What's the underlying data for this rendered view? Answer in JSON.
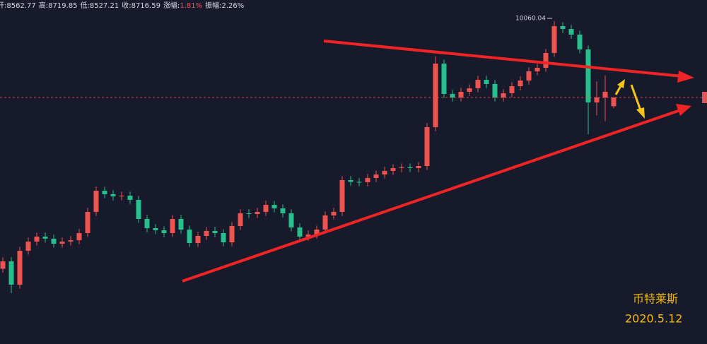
{
  "chart_data": {
    "type": "candlestick",
    "header": [
      {
        "label": "开:",
        "value": "8562.77"
      },
      {
        "label": "高:",
        "value": "8719.85"
      },
      {
        "label": "低:",
        "value": "8527.21"
      },
      {
        "label": "收:",
        "value": "8716.59"
      },
      {
        "label": "涨幅:",
        "value": "1.81%"
      },
      {
        "label": "振幅:",
        "value": "2.26%"
      }
    ],
    "up_color": "#ef5350",
    "down_color": "#26c08e",
    "ylim": [
      4375,
      10433
    ],
    "open": [
      5700,
      5830,
      5420,
      6017,
      6179,
      6266,
      6230,
      6141,
      6179,
      6203,
      6328,
      6701,
      7074,
      7012,
      6975,
      6987,
      6913,
      6577,
      6415,
      6378,
      6328,
      6577,
      6390,
      6154,
      6278,
      6365,
      6328,
      6166,
      6452,
      6676,
      6664,
      6701,
      6825,
      6763,
      6676,
      6427,
      6266,
      6303,
      6390,
      6639,
      6701,
      7261,
      7230,
      7224,
      7298,
      7360,
      7423,
      7472,
      7485,
      7472,
      7510,
      8194,
      9313,
      8779,
      8716,
      8816,
      8878,
      9027,
      8953,
      8716,
      8791,
      8915,
      9015,
      9177,
      9239,
      9500,
      9973,
      9923,
      9823,
      9562,
      8629,
      8716,
      8562.77
    ],
    "high": [
      5900,
      5900,
      6087,
      6249,
      6336,
      6336,
      6300,
      6249,
      6273,
      6398,
      6771,
      7144,
      7144,
      7082,
      7057,
      7057,
      6983,
      6647,
      6485,
      6448,
      6647,
      6647,
      6460,
      6348,
      6435,
      6435,
      6398,
      6522,
      6746,
      6746,
      6771,
      6895,
      6895,
      6833,
      6746,
      6497,
      6373,
      6460,
      6709,
      6771,
      7331,
      7331,
      7300,
      7368,
      7430,
      7493,
      7542,
      7555,
      7555,
      7580,
      8264,
      9440,
      9383,
      8849,
      8886,
      8948,
      9097,
      9097,
      9023,
      8861,
      8985,
      9085,
      9247,
      9309,
      9570,
      10060.04,
      10043,
      9993,
      9893,
      9632,
      9000,
      9100,
      8719.85
    ],
    "low": [
      5630,
      5270,
      5350,
      5947,
      6109,
      6160,
      6071,
      6071,
      6109,
      6133,
      6258,
      6631,
      6942,
      6905,
      6905,
      6843,
      6507,
      6345,
      6308,
      6258,
      6258,
      6320,
      6084,
      6084,
      6208,
      6258,
      6096,
      6096,
      6382,
      6594,
      6594,
      6631,
      6693,
      6606,
      6357,
      6196,
      6196,
      6233,
      6320,
      6569,
      6631,
      7160,
      7154,
      7154,
      7228,
      7290,
      7353,
      7402,
      7402,
      7402,
      7440,
      8124,
      8709,
      8646,
      8646,
      8746,
      8808,
      8883,
      8646,
      8646,
      8721,
      8845,
      8945,
      9107,
      9169,
      9430,
      9853,
      9753,
      9492,
      8070,
      8400,
      8300,
      8527.21
    ],
    "close": [
      5830,
      5420,
      6017,
      6179,
      6266,
      6230,
      6141,
      6179,
      6203,
      6328,
      6701,
      7074,
      7012,
      6975,
      6987,
      6913,
      6577,
      6415,
      6378,
      6328,
      6577,
      6390,
      6154,
      6278,
      6365,
      6328,
      6166,
      6452,
      6676,
      6664,
      6701,
      6825,
      6763,
      6676,
      6427,
      6266,
      6303,
      6390,
      6639,
      6701,
      7261,
      7230,
      7224,
      7298,
      7360,
      7423,
      7472,
      7485,
      7472,
      7510,
      8194,
      9313,
      8779,
      8716,
      8816,
      8878,
      9027,
      8953,
      8716,
      8791,
      8915,
      9015,
      9177,
      9239,
      9500,
      9973,
      9923,
      9823,
      9562,
      8629,
      8716,
      8816,
      8716.59
    ],
    "watermark": [
      "币特莱斯",
      "2020.5.12"
    ]
  }
}
